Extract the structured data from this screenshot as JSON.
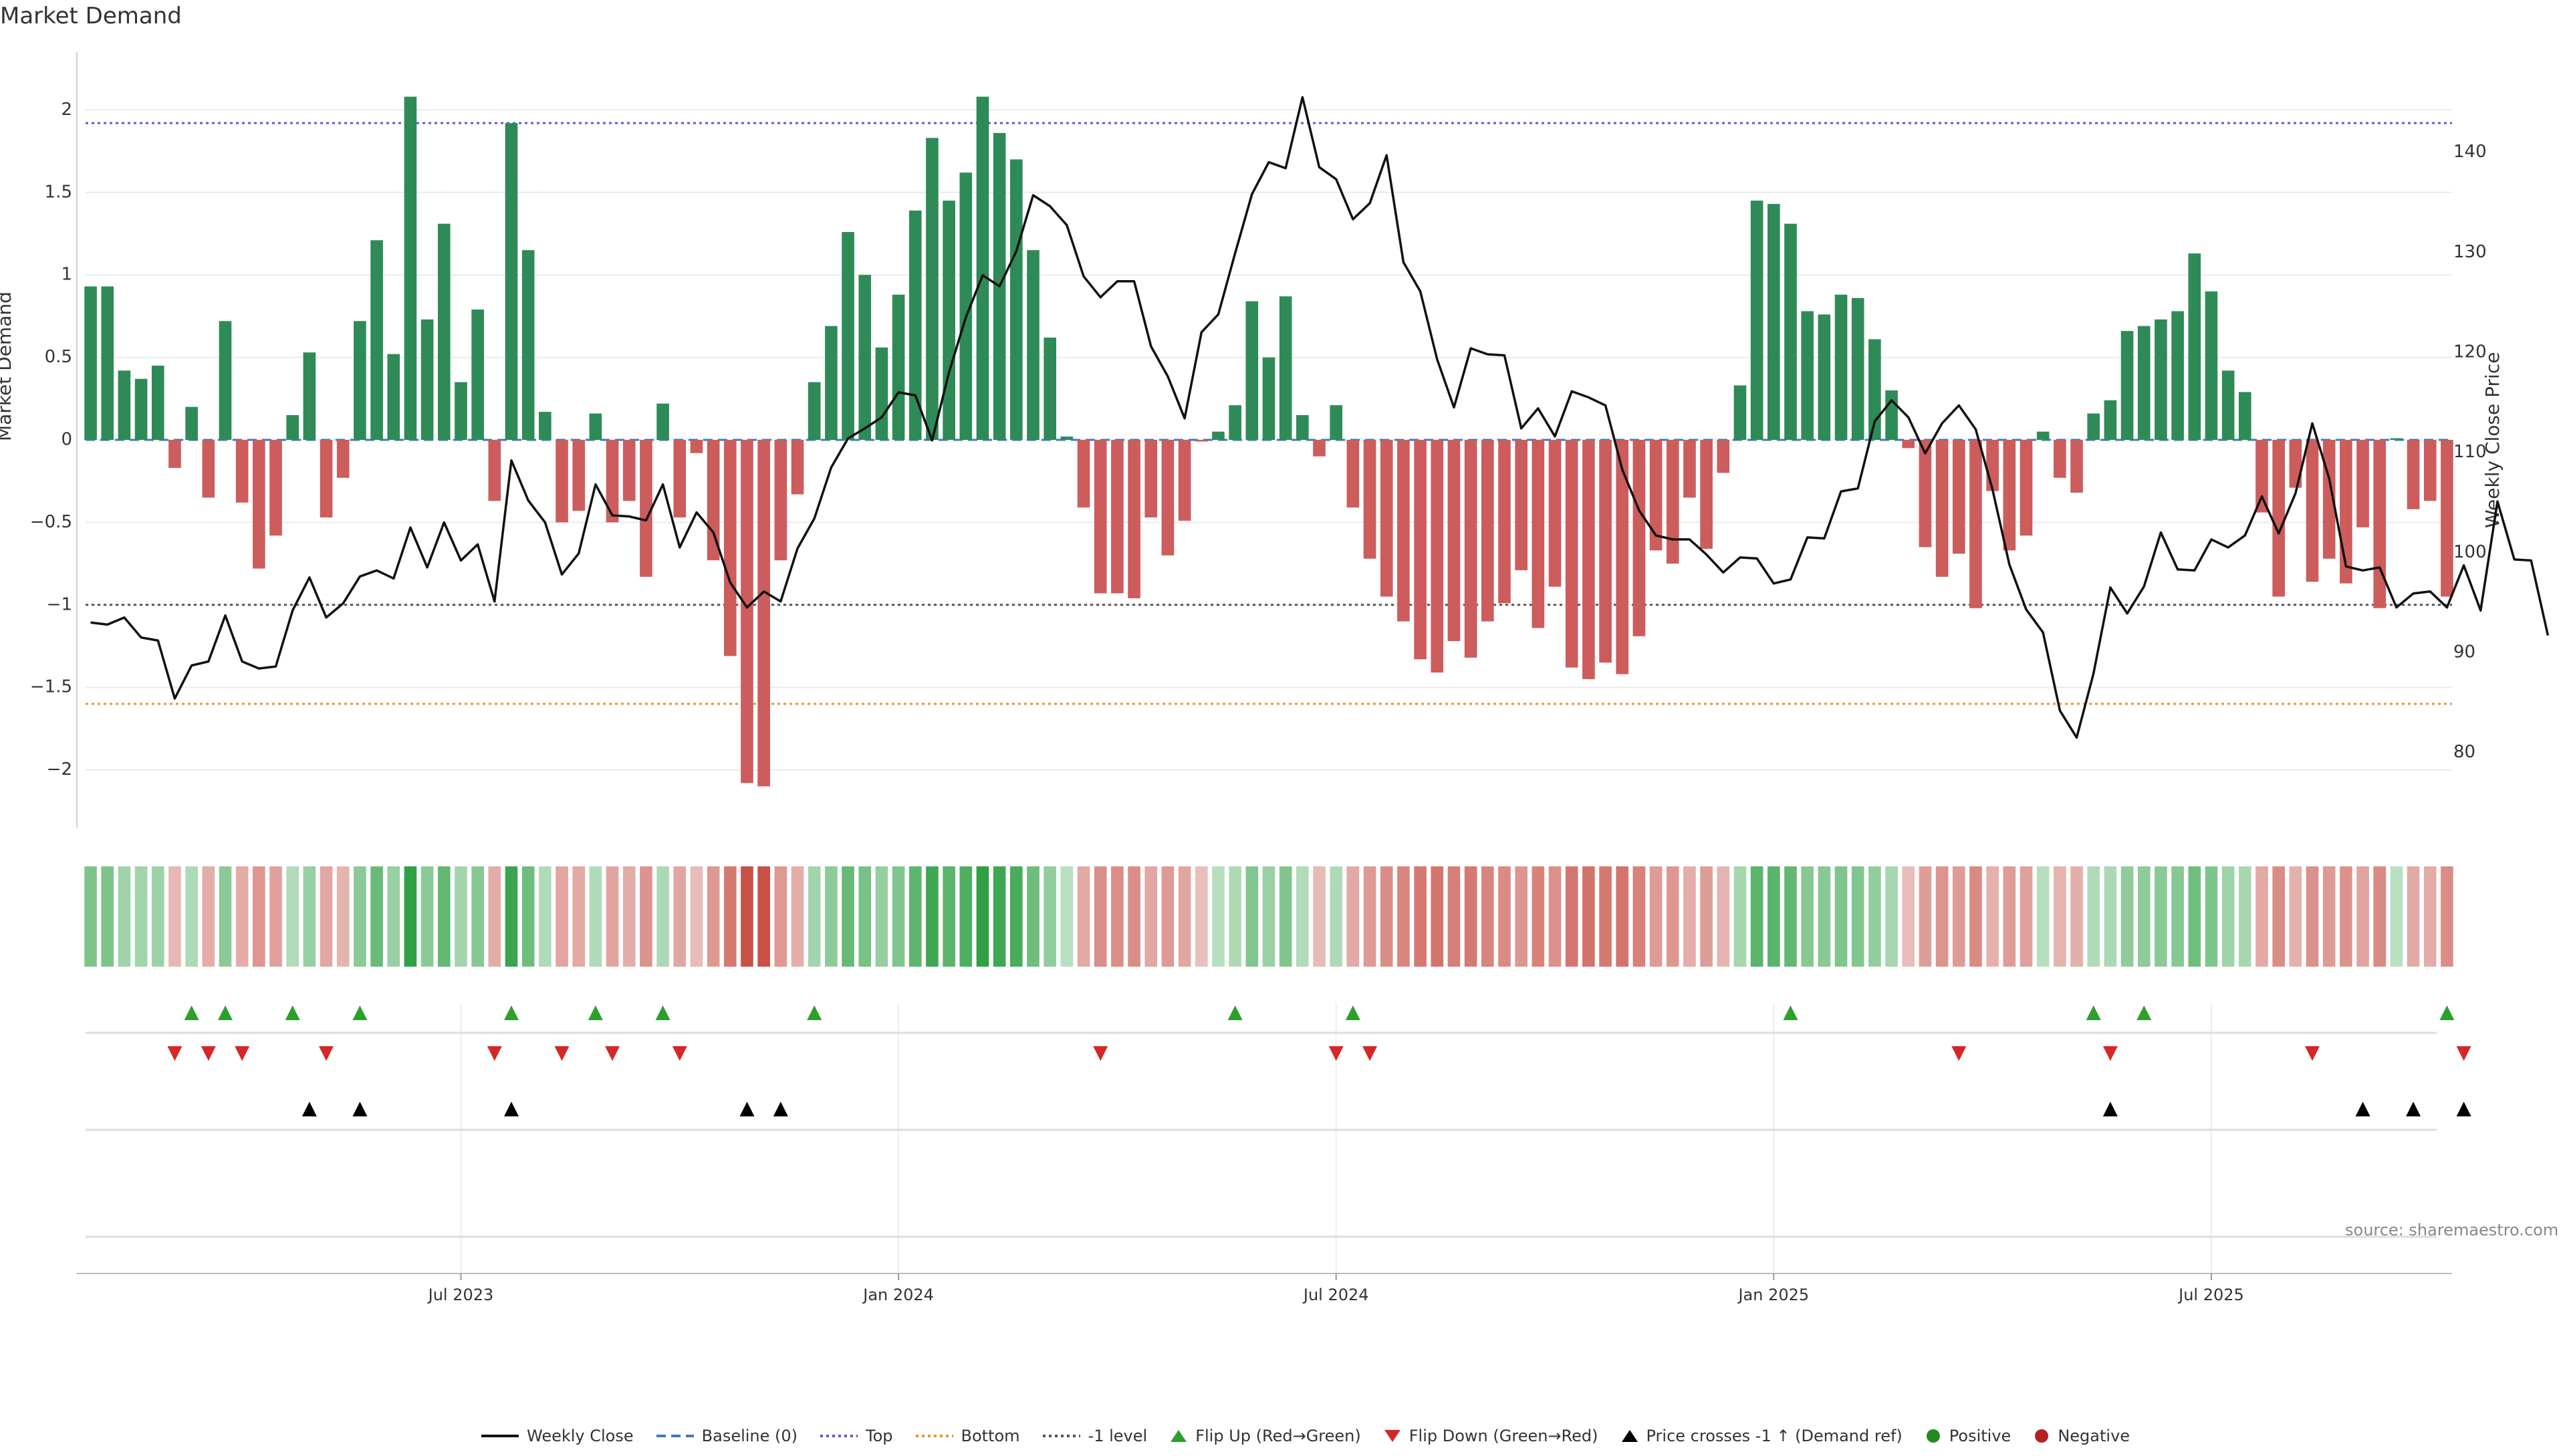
{
  "chart_data": {
    "type": "bar+line",
    "title": "Market Demand",
    "ylabel_left": "Market Demand",
    "ylabel_right": "Weekly Close Price",
    "source": "source: sharemaestro.com",
    "ylim_left": [
      -2.35,
      2.35
    ],
    "ylim_right": [
      72.5,
      150
    ],
    "y_ticks_left": [
      {
        "value": 2,
        "label": "2"
      },
      {
        "value": 1.5,
        "label": "1.5"
      },
      {
        "value": 1,
        "label": "1"
      },
      {
        "value": 0.5,
        "label": "0.5"
      },
      {
        "value": 0,
        "label": "0"
      },
      {
        "value": -0.5,
        "label": "−0.5"
      },
      {
        "value": -1,
        "label": "−1"
      },
      {
        "value": -1.5,
        "label": "−1.5"
      },
      {
        "value": -2,
        "label": "−2"
      }
    ],
    "y_ticks_right": [
      {
        "value": 140,
        "label": "140"
      },
      {
        "value": 130,
        "label": "130"
      },
      {
        "value": 120,
        "label": "120"
      },
      {
        "value": 110,
        "label": "110"
      },
      {
        "value": 100,
        "label": "100"
      },
      {
        "value": 90,
        "label": "90"
      },
      {
        "value": 80,
        "label": "80"
      }
    ],
    "x_ticks": [
      {
        "week": 22,
        "label": "Jul 2023"
      },
      {
        "week": 48,
        "label": "Jan 2024"
      },
      {
        "week": 74,
        "label": "Jul 2024"
      },
      {
        "week": 100,
        "label": "Jan 2025"
      },
      {
        "week": 126,
        "label": "Jul 2025"
      }
    ],
    "reference_lines": [
      {
        "name": "Top",
        "value": 1.92,
        "color": "#5b5bd6"
      },
      {
        "name": "Bottom",
        "value": -1.6,
        "color": "#e8962a"
      },
      {
        "name": "-1 level",
        "value": -1,
        "color": "#555555"
      },
      {
        "name": "Baseline (0)",
        "value": 0,
        "color": "#3b7bbf"
      }
    ],
    "colors": {
      "positive_bar": "#2e8b57",
      "negative_bar": "#cd5c5c",
      "price_line": "#111111",
      "flip_up": "#2ca02c",
      "flip_down": "#d62728",
      "cross": "#000000",
      "positive_dot": "#228b22",
      "negative_dot": "#b22222"
    },
    "demand": [
      0.93,
      0.93,
      0.42,
      0.37,
      0.45,
      -0.17,
      0.2,
      -0.35,
      0.72,
      -0.38,
      -0.78,
      -0.58,
      0.15,
      0.53,
      -0.47,
      -0.23,
      0.72,
      1.21,
      0.52,
      2.08,
      0.73,
      1.31,
      0.35,
      0.79,
      -0.37,
      1.92,
      1.15,
      0.17,
      -0.5,
      -0.43,
      0.16,
      -0.5,
      -0.37,
      -0.83,
      0.22,
      -0.47,
      -0.08,
      -0.73,
      -1.31,
      -2.08,
      -2.1,
      -0.73,
      -0.33,
      0.35,
      0.69,
      1.26,
      1,
      0.56,
      0.88,
      1.39,
      1.83,
      1.45,
      1.62,
      2.08,
      1.86,
      1.7,
      1.15,
      0.62,
      0.02,
      -0.41,
      -0.93,
      -0.93,
      -0.96,
      -0.47,
      -0.7,
      -0.49,
      -0.01,
      0.05,
      0.21,
      0.84,
      0.5,
      0.87,
      0.15,
      -0.1,
      0.21,
      -0.41,
      -0.72,
      -0.95,
      -1.1,
      -1.33,
      -1.41,
      -1.22,
      -1.32,
      -1.1,
      -0.99,
      -0.79,
      -1.14,
      -0.89,
      -1.38,
      -1.45,
      -1.35,
      -1.42,
      -1.19,
      -0.67,
      -0.75,
      -0.35,
      -0.66,
      -0.2,
      0.33,
      1.45,
      1.43,
      1.31,
      0.78,
      0.76,
      0.88,
      0.86,
      0.61,
      0.3,
      -0.05,
      -0.65,
      -0.83,
      -0.69,
      -1.02,
      -0.31,
      -0.67,
      -0.58,
      0.05,
      -0.23,
      -0.32,
      0.16,
      0.24,
      0.66,
      0.69,
      0.73,
      0.78,
      1.13,
      0.9,
      0.42,
      0.29,
      -0.44,
      -0.95,
      -0.29,
      -0.86,
      -0.72,
      -0.87,
      -0.53,
      -1.02,
      0.01,
      -0.42,
      -0.37,
      -0.95
    ],
    "close": [
      93,
      92.8,
      93.5,
      91.5,
      91.2,
      85.4,
      88.7,
      89.1,
      93.7,
      89.1,
      88.4,
      88.6,
      94.2,
      97.5,
      93.5,
      94.9,
      97.6,
      98.2,
      97.4,
      102.5,
      98.5,
      103,
      99.2,
      100.8,
      95.1,
      109.2,
      105.2,
      103,
      97.8,
      99.9,
      106.8,
      103.7,
      103.6,
      103.2,
      106.8,
      100.5,
      104,
      102,
      97,
      94.5,
      96.1,
      95.1,
      100.4,
      103.4,
      108.5,
      111.4,
      112.4,
      113.5,
      116,
      115.7,
      111.2,
      118,
      123.5,
      127.7,
      126.6,
      130.1,
      135.7,
      134.6,
      132.7,
      127.6,
      125.5,
      127.1,
      127.1,
      120.6,
      117.6,
      113.4,
      122,
      123.8,
      129.9,
      135.8,
      139,
      138.4,
      145.5,
      138.5,
      137.3,
      133.3,
      134.9,
      139.7,
      129,
      126.1,
      119.3,
      114.5,
      120.4,
      119.8,
      119.7,
      112.4,
      114.4,
      111.6,
      116.1,
      115.5,
      114.7,
      108.3,
      104.2,
      101.7,
      101.3,
      101.3,
      99.8,
      98,
      99.5,
      99.4,
      96.9,
      97.3,
      101.5,
      101.4,
      106.1,
      106.4,
      113.1,
      115.2,
      113.5,
      109.9,
      112.9,
      114.7,
      112.3,
      106.3,
      98.8,
      94.3,
      92,
      84.2,
      81.5,
      87.9,
      96.5,
      93.9,
      96.6,
      102,
      98.3,
      98.2,
      101.3,
      100.5,
      101.7,
      105.6,
      101.9,
      105.9,
      112.9,
      107.4,
      98.6,
      98.2,
      98.5,
      94.5,
      95.9,
      96.1,
      94.5,
      98.7,
      94.2,
      105.1,
      99.3,
      99.2,
      91.7
    ],
    "flip_up_weeks": [
      6,
      8,
      12,
      16,
      25,
      30,
      34,
      43,
      68,
      75,
      101,
      119,
      122,
      140
    ],
    "flip_down_weeks": [
      5,
      7,
      9,
      14,
      24,
      28,
      31,
      35,
      60,
      74,
      76,
      111,
      120,
      132,
      141
    ],
    "cross_weeks": [
      13,
      16,
      25,
      39,
      41,
      120,
      135,
      138,
      141
    ],
    "legend": [
      "Weekly Close",
      "Baseline (0)",
      "Top",
      "Bottom",
      "-1 level",
      "Flip Up (Red→Green)",
      "Flip Down (Green→Red)",
      "Price crosses -1 ↑ (Demand ref)",
      "Positive",
      "Negative"
    ]
  }
}
